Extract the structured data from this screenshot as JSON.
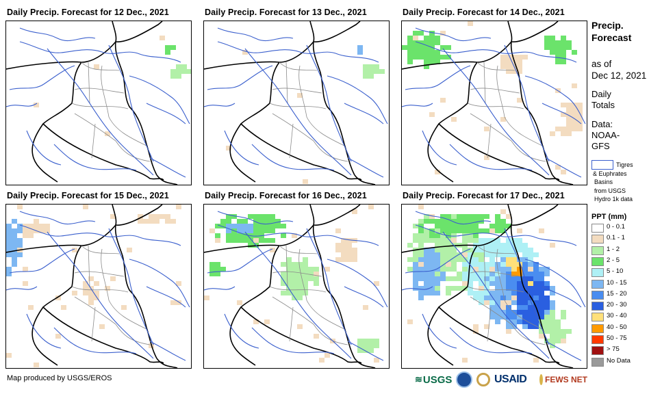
{
  "panels": [
    {
      "title": "Daily Precip. Forecast for 12 Dec., 2021",
      "intensity": 0
    },
    {
      "title": "Daily Precip. Forecast for 13 Dec., 2021",
      "intensity": 0
    },
    {
      "title": "Daily Precip. Forecast for 14 Dec., 2021",
      "intensity": 1
    },
    {
      "title": "Daily Precip. Forecast for 15 Dec., 2021",
      "intensity": 1
    },
    {
      "title": "Daily Precip. Forecast for 16 Dec., 2021",
      "intensity": 2
    },
    {
      "title": "Daily Precip. Forecast for 17 Dec., 2021",
      "intensity": 3
    }
  ],
  "sidebar": {
    "title_line1": "Precip.",
    "title_line2": "Forecast",
    "asof_line1": "as of",
    "asof_line2": "Dec 12, 2021",
    "totals_line1": "Daily",
    "totals_line2": "Totals",
    "data_line1": "Data:",
    "data_line2": "NOAA-",
    "data_line3": "GFS",
    "basin_line1": "Tigres",
    "basin_line2": "& Euphrates",
    "basin_line3": "Basins",
    "basin_line4": "from USGS",
    "basin_line5": "Hydro 1k data",
    "legend_title": "PPT (mm)"
  },
  "legend": [
    {
      "label": "0 - 0.1",
      "color": "#ffffff"
    },
    {
      "label": "0.1 - 1",
      "color": "#f3dcc0"
    },
    {
      "label": "1 - 2",
      "color": "#b2f0a8"
    },
    {
      "label": "2 - 5",
      "color": "#6be36b"
    },
    {
      "label": "5 - 10",
      "color": "#aef0f5"
    },
    {
      "label": "10 - 15",
      "color": "#7db7f2"
    },
    {
      "label": "15 - 20",
      "color": "#4a8df0"
    },
    {
      "label": "20 - 30",
      "color": "#2a5fe0"
    },
    {
      "label": "30 - 40",
      "color": "#ffe07a"
    },
    {
      "label": "40 - 50",
      "color": "#ff9a00"
    },
    {
      "label": "50 - 75",
      "color": "#ff3a00"
    },
    {
      "label": "> 75",
      "color": "#a01010"
    },
    {
      "label": "No Data",
      "color": "#9a9a9a"
    }
  ],
  "footer": {
    "credit": "Map produced by USGS/EROS"
  },
  "logos": {
    "usgs": "USGS",
    "usaid": "USAID",
    "fewsnet": "FEWS NET"
  },
  "colors": {
    "river": "#3a5fcd",
    "border": "#000000",
    "admin": "#8a8a8a"
  }
}
